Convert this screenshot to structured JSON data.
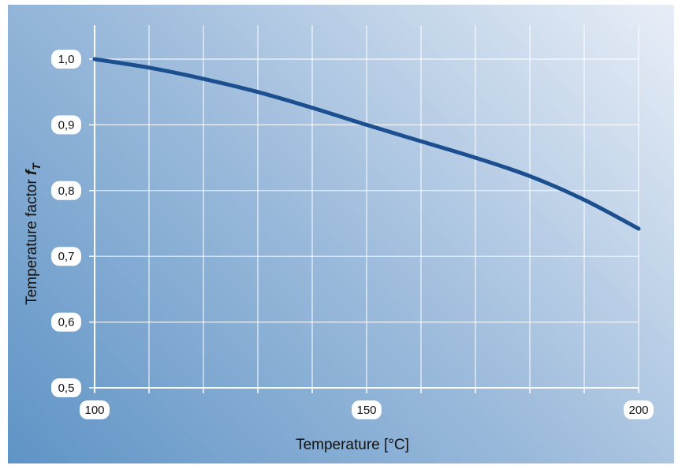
{
  "chart_data": {
    "type": "line",
    "xlabel": "Temperature [°C]",
    "ylabel": "Temperature factor",
    "ylabel_symbol": "f",
    "ylabel_subscript": "T",
    "xlim": [
      100,
      200
    ],
    "ylim": [
      0.5,
      1.0
    ],
    "x_ticks": [
      100,
      150,
      200
    ],
    "x_tick_labels": [
      "100",
      "150",
      "200"
    ],
    "x_grid_step": 10,
    "y_ticks": [
      0.5,
      0.6,
      0.7,
      0.8,
      0.9,
      1.0
    ],
    "y_tick_labels": [
      "0,5",
      "0,6",
      "0,7",
      "0,8",
      "0,9",
      "1,0"
    ],
    "grid": true,
    "series": [
      {
        "color": "#1c4f8f",
        "x": [
          100,
          110,
          120,
          130,
          140,
          150,
          160,
          170,
          180,
          190,
          200
        ],
        "y": [
          1.0,
          0.987,
          0.97,
          0.95,
          0.926,
          0.9,
          0.875,
          0.85,
          0.822,
          0.786,
          0.742
        ]
      }
    ]
  }
}
